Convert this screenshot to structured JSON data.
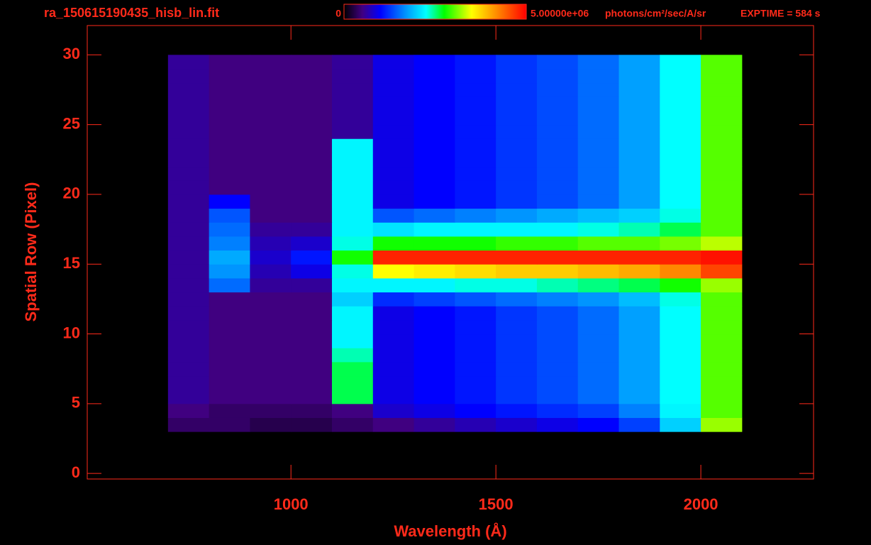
{
  "chart_data": {
    "type": "heatmap",
    "title": "ra_150615190435_hisb_lin.fit",
    "annotation": "EXPTIME = 584 s",
    "colorbar_unit": "photons/cm²/sec/A/sr",
    "clim": [
      0,
      5000000
    ],
    "cticks": [
      0,
      {
        "value": 5000000,
        "label": "5.00000e+06"
      }
    ],
    "x_label": "Wavelength (Å)",
    "y_label": "Spatial Row (Pixel)",
    "xlim": [
      503,
      2275
    ],
    "ylim": [
      -0.4,
      32.1
    ],
    "xticks": [
      1000,
      1500,
      2000
    ],
    "yticks": [
      0,
      5,
      10,
      15,
      20,
      25,
      30
    ],
    "x_bins": [
      700,
      800,
      900,
      1000,
      1100,
      1200,
      1300,
      1400,
      1500,
      1600,
      1700,
      1800,
      1900,
      2000,
      2100
    ],
    "rows": [
      3,
      4,
      5,
      6,
      7,
      8,
      9,
      10,
      11,
      12,
      13,
      14,
      15,
      16,
      17,
      18,
      19,
      20,
      21,
      22,
      23,
      24,
      25,
      26,
      27,
      28,
      29
    ],
    "z": [
      [
        400000.0,
        400000.0,
        300000.0,
        300000.0,
        400000.0,
        500000.0,
        600000.0,
        700000.0,
        800000.0,
        900000.0,
        1000000.0,
        1300000.0,
        2000000.0,
        3200000.0
      ],
      [
        500000.0,
        400000.0,
        400000.0,
        400000.0,
        500000.0,
        800000.0,
        900000.0,
        1000000.0,
        1100000.0,
        1200000.0,
        1300000.0,
        1600000.0,
        2200000.0,
        3000000.0
      ],
      [
        600000.0,
        500000.0,
        500000.0,
        500000.0,
        2600000.0,
        900000.0,
        1000000.0,
        1100000.0,
        1250000.0,
        1350000.0,
        1500000.0,
        1750000.0,
        2250000.0,
        3000000.0
      ],
      [
        600000.0,
        500000.0,
        500000.0,
        500000.0,
        2600000.0,
        900000.0,
        1000000.0,
        1100000.0,
        1250000.0,
        1350000.0,
        1500000.0,
        1750000.0,
        2250000.0,
        3000000.0
      ],
      [
        600000.0,
        500000.0,
        500000.0,
        500000.0,
        2600000.0,
        900000.0,
        1000000.0,
        1100000.0,
        1250000.0,
        1350000.0,
        1500000.0,
        1750000.0,
        2250000.0,
        3000000.0
      ],
      [
        600000.0,
        500000.0,
        500000.0,
        500000.0,
        2400000.0,
        900000.0,
        1000000.0,
        1100000.0,
        1250000.0,
        1350000.0,
        1500000.0,
        1750000.0,
        2250000.0,
        3000000.0
      ],
      [
        600000.0,
        500000.0,
        500000.0,
        500000.0,
        2200000.0,
        900000.0,
        1000000.0,
        1100000.0,
        1250000.0,
        1350000.0,
        1500000.0,
        1750000.0,
        2250000.0,
        3000000.0
      ],
      [
        600000.0,
        500000.0,
        500000.0,
        500000.0,
        2200000.0,
        900000.0,
        1000000.0,
        1100000.0,
        1250000.0,
        1350000.0,
        1500000.0,
        1750000.0,
        2250000.0,
        3000000.0
      ],
      [
        600000.0,
        500000.0,
        500000.0,
        500000.0,
        2200000.0,
        900000.0,
        1000000.0,
        1100000.0,
        1250000.0,
        1350000.0,
        1500000.0,
        1750000.0,
        2250000.0,
        3000000.0
      ],
      [
        600000.0,
        500000.0,
        500000.0,
        500000.0,
        2000000.0,
        1200000.0,
        1300000.0,
        1400000.0,
        1500000.0,
        1600000.0,
        1700000.0,
        1900000.0,
        2300000.0,
        3000000.0
      ],
      [
        600000.0,
        1500000.0,
        600000.0,
        600000.0,
        2200000.0,
        2200000.0,
        2200000.0,
        2300000.0,
        2300000.0,
        2400000.0,
        2500000.0,
        2600000.0,
        2800000.0,
        3200000.0
      ],
      [
        600000.0,
        1700000.0,
        700000.0,
        900000.0,
        2300000.0,
        3500000.0,
        3600000.0,
        3700000.0,
        3800000.0,
        3800000.0,
        3900000.0,
        4000000.0,
        4200000.0,
        4600000.0
      ],
      [
        600000.0,
        1800000.0,
        800000.0,
        1100000.0,
        2800000.0,
        4800000.0,
        4800000.0,
        4800000.0,
        4800000.0,
        4800000.0,
        4800000.0,
        4800000.0,
        4800000.0,
        4900000.0
      ],
      [
        600000.0,
        1600000.0,
        700000.0,
        800000.0,
        2300000.0,
        2800000.0,
        2800000.0,
        2800000.0,
        2900000.0,
        2900000.0,
        3000000.0,
        3000000.0,
        3100000.0,
        3300000.0
      ],
      [
        600000.0,
        1500000.0,
        600000.0,
        600000.0,
        2200000.0,
        2100000.0,
        2200000.0,
        2200000.0,
        2200000.0,
        2200000.0,
        2300000.0,
        2400000.0,
        2600000.0,
        3000000.0
      ],
      [
        600000.0,
        1400000.0,
        500000.0,
        500000.0,
        2200000.0,
        1400000.0,
        1500000.0,
        1600000.0,
        1700000.0,
        1800000.0,
        1900000.0,
        2000000.0,
        2300000.0,
        3000000.0
      ],
      [
        600000.0,
        1000000.0,
        500000.0,
        500000.0,
        2200000.0,
        900000.0,
        1000000.0,
        1100000.0,
        1250000.0,
        1350000.0,
        1500000.0,
        1750000.0,
        2250000.0,
        3000000.0
      ],
      [
        600000.0,
        500000.0,
        500000.0,
        500000.0,
        2200000.0,
        900000.0,
        1000000.0,
        1100000.0,
        1250000.0,
        1350000.0,
        1500000.0,
        1750000.0,
        2250000.0,
        3000000.0
      ],
      [
        600000.0,
        500000.0,
        500000.0,
        500000.0,
        2200000.0,
        900000.0,
        1000000.0,
        1100000.0,
        1250000.0,
        1350000.0,
        1500000.0,
        1750000.0,
        2250000.0,
        3000000.0
      ],
      [
        600000.0,
        500000.0,
        500000.0,
        500000.0,
        2200000.0,
        900000.0,
        1000000.0,
        1100000.0,
        1250000.0,
        1350000.0,
        1500000.0,
        1750000.0,
        2250000.0,
        3000000.0
      ],
      [
        600000.0,
        500000.0,
        500000.0,
        500000.0,
        2200000.0,
        900000.0,
        1000000.0,
        1100000.0,
        1250000.0,
        1350000.0,
        1500000.0,
        1750000.0,
        2250000.0,
        3000000.0
      ],
      [
        600000.0,
        500000.0,
        500000.0,
        500000.0,
        600000.0,
        900000.0,
        1000000.0,
        1100000.0,
        1250000.0,
        1350000.0,
        1500000.0,
        1750000.0,
        2250000.0,
        3000000.0
      ],
      [
        600000.0,
        500000.0,
        500000.0,
        500000.0,
        600000.0,
        900000.0,
        1000000.0,
        1100000.0,
        1250000.0,
        1350000.0,
        1500000.0,
        1750000.0,
        2250000.0,
        3000000.0
      ],
      [
        600000.0,
        500000.0,
        500000.0,
        500000.0,
        600000.0,
        900000.0,
        1000000.0,
        1100000.0,
        1250000.0,
        1350000.0,
        1500000.0,
        1750000.0,
        2250000.0,
        3000000.0
      ],
      [
        600000.0,
        500000.0,
        500000.0,
        500000.0,
        600000.0,
        900000.0,
        1000000.0,
        1100000.0,
        1250000.0,
        1350000.0,
        1500000.0,
        1750000.0,
        2250000.0,
        3000000.0
      ],
      [
        600000.0,
        500000.0,
        500000.0,
        500000.0,
        600000.0,
        900000.0,
        1000000.0,
        1100000.0,
        1250000.0,
        1350000.0,
        1500000.0,
        1750000.0,
        2250000.0,
        3000000.0
      ],
      [
        600000.0,
        500000.0,
        500000.0,
        500000.0,
        600000.0,
        900000.0,
        1000000.0,
        1100000.0,
        1250000.0,
        1350000.0,
        1500000.0,
        1750000.0,
        2250000.0,
        3000000.0
      ]
    ]
  }
}
